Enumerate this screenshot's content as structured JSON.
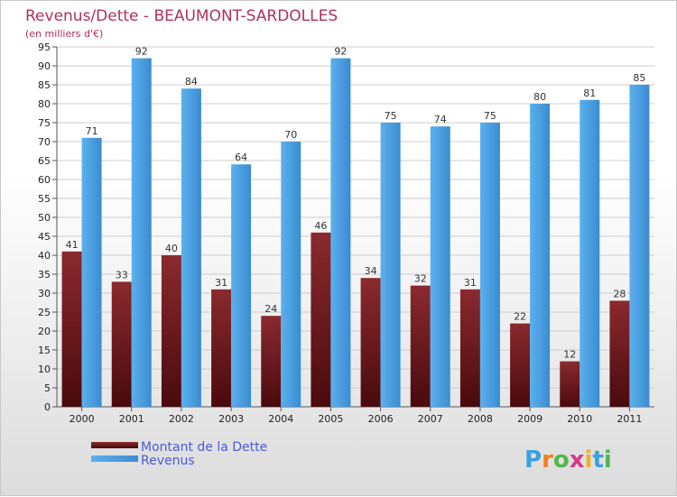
{
  "chart_data": {
    "type": "bar",
    "title": "Revenus/Dette - BEAUMONT-SARDOLLES",
    "subtitle": "(en milliers d'€)",
    "categories": [
      "2000",
      "2001",
      "2002",
      "2003",
      "2004",
      "2005",
      "2006",
      "2007",
      "2008",
      "2009",
      "2010",
      "2011"
    ],
    "series": [
      {
        "name": "Montant de la Dette",
        "color": "#6e1a1e",
        "values": [
          41,
          33,
          40,
          31,
          24,
          46,
          34,
          32,
          31,
          22,
          12,
          28
        ]
      },
      {
        "name": "Revenus",
        "color": "#3a94d8",
        "values": [
          71,
          92,
          84,
          64,
          70,
          92,
          75,
          74,
          75,
          80,
          81,
          85
        ]
      }
    ],
    "ylim": [
      0,
      95
    ],
    "yticks": [
      0,
      5,
      10,
      15,
      20,
      25,
      30,
      35,
      40,
      45,
      50,
      55,
      60,
      65,
      70,
      75,
      80,
      85,
      90,
      95
    ],
    "grid": true,
    "legend_position": "bottom-left"
  },
  "brand": {
    "letters": [
      "P",
      "r",
      "o",
      "x",
      "i",
      "t",
      "i"
    ],
    "colors": [
      "#3aa0e0",
      "#f08020",
      "#4fb84f",
      "#d83a8a",
      "#f0b020",
      "#3aa0e0",
      "#4fb84f"
    ]
  }
}
